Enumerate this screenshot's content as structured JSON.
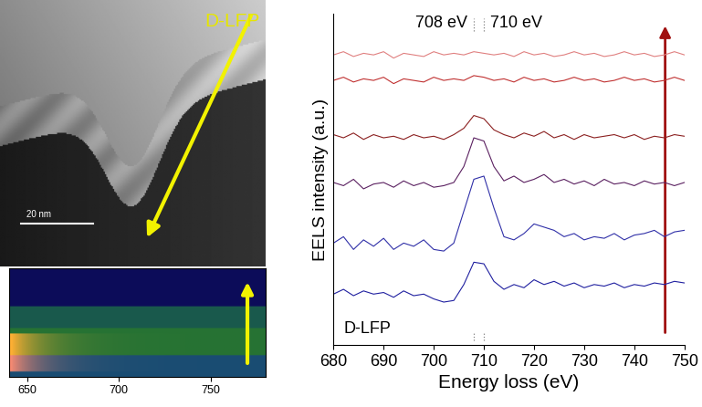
{
  "chart_data": [
    {
      "type": "line",
      "x_label": "Energy loss (eV)",
      "y_label": "EELS intensity (a.u.)",
      "x": [
        680,
        682,
        684,
        686,
        688,
        690,
        692,
        694,
        696,
        698,
        700,
        702,
        704,
        706,
        708,
        710,
        712,
        714,
        716,
        718,
        720,
        722,
        724,
        726,
        728,
        730,
        732,
        734,
        736,
        738,
        740,
        742,
        744,
        746,
        748,
        750
      ],
      "series": [
        {
          "color": "#2020a0",
          "values": [
            1.6,
            1.75,
            1.55,
            1.7,
            1.6,
            1.65,
            1.5,
            1.7,
            1.55,
            1.6,
            1.45,
            1.35,
            1.4,
            1.9,
            2.6,
            2.55,
            2.0,
            1.75,
            1.9,
            1.8,
            2.05,
            1.9,
            2.0,
            1.85,
            1.95,
            1.8,
            1.9,
            1.85,
            1.95,
            1.8,
            1.9,
            1.85,
            1.95,
            1.9,
            2.0,
            1.95
          ]
        },
        {
          "color": "#3030a8",
          "values": [
            3.2,
            3.4,
            3.0,
            3.3,
            3.1,
            3.35,
            3.0,
            3.2,
            3.1,
            3.3,
            3.0,
            2.95,
            3.2,
            4.2,
            5.2,
            5.3,
            4.3,
            3.4,
            3.3,
            3.5,
            3.8,
            3.7,
            3.6,
            3.4,
            3.5,
            3.3,
            3.4,
            3.35,
            3.5,
            3.3,
            3.45,
            3.5,
            3.6,
            3.4,
            3.55,
            3.6
          ]
        },
        {
          "color": "#5a2060",
          "values": [
            5.1,
            5.0,
            5.2,
            4.9,
            5.05,
            5.1,
            4.95,
            5.15,
            5.0,
            5.1,
            4.95,
            5.0,
            5.1,
            5.6,
            6.5,
            6.4,
            5.6,
            5.15,
            5.3,
            5.1,
            5.2,
            5.35,
            5.1,
            5.2,
            5.05,
            5.15,
            5.0,
            5.2,
            5.05,
            5.1,
            5.0,
            5.15,
            5.05,
            5.1,
            5.0,
            5.1
          ]
        },
        {
          "color": "#8b2020",
          "values": [
            6.6,
            6.5,
            6.65,
            6.45,
            6.6,
            6.5,
            6.55,
            6.45,
            6.6,
            6.5,
            6.55,
            6.45,
            6.6,
            6.8,
            7.2,
            7.1,
            6.75,
            6.6,
            6.5,
            6.65,
            6.55,
            6.7,
            6.5,
            6.6,
            6.45,
            6.6,
            6.5,
            6.55,
            6.6,
            6.5,
            6.6,
            6.45,
            6.55,
            6.5,
            6.6,
            6.55
          ]
        },
        {
          "color": "#c03030",
          "values": [
            8.3,
            8.4,
            8.25,
            8.35,
            8.3,
            8.4,
            8.2,
            8.35,
            8.3,
            8.25,
            8.4,
            8.3,
            8.35,
            8.3,
            8.45,
            8.4,
            8.3,
            8.35,
            8.25,
            8.4,
            8.3,
            8.35,
            8.25,
            8.3,
            8.4,
            8.3,
            8.35,
            8.25,
            8.3,
            8.4,
            8.3,
            8.35,
            8.25,
            8.3,
            8.4,
            8.3
          ]
        },
        {
          "color": "#e08080",
          "values": [
            9.1,
            9.2,
            9.05,
            9.15,
            9.1,
            9.2,
            9.0,
            9.15,
            9.1,
            9.05,
            9.2,
            9.1,
            9.15,
            9.1,
            9.2,
            9.15,
            9.1,
            9.15,
            9.05,
            9.2,
            9.1,
            9.15,
            9.05,
            9.1,
            9.2,
            9.1,
            9.15,
            9.05,
            9.1,
            9.2,
            9.1,
            9.15,
            9.05,
            9.1,
            9.2,
            9.1
          ]
        }
      ],
      "xlim": [
        680,
        750
      ],
      "xticks": [
        680,
        690,
        700,
        710,
        720,
        730,
        740,
        750
      ],
      "ylim": [
        0,
        10.4
      ],
      "tick_labels": "x",
      "annotations": [
        {
          "text": "708 eV",
          "x": 708
        },
        {
          "text": "710 eV",
          "x": 710
        },
        {
          "text": "D-LFP"
        }
      ]
    },
    {
      "type": "image",
      "xlim": [
        640,
        780
      ],
      "xticks": [
        650,
        700,
        750
      ],
      "tick_labels": "x"
    }
  ],
  "tem_image": {
    "label": "D-LFP",
    "scale_bar": "20 nm"
  }
}
